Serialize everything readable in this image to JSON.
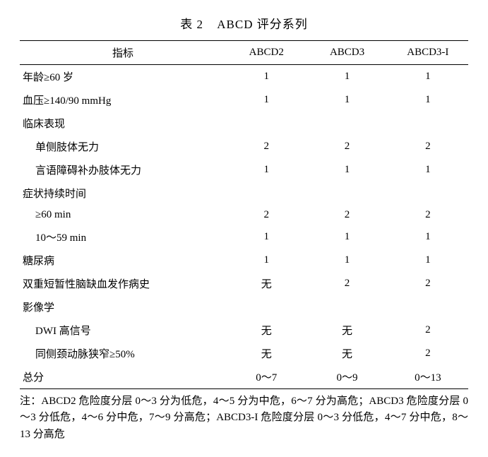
{
  "title_prefix": "表 2",
  "title_text": "ABCD 评分系列",
  "columns": {
    "indicator": "指标",
    "abcd2": "ABCD2",
    "abcd3": "ABCD3",
    "abcd3i": "ABCD3-I"
  },
  "rows": {
    "age": {
      "label": "年龄≥60 岁",
      "a": "1",
      "b": "1",
      "c": "1"
    },
    "bp": {
      "label": "血压≥140/90 mmHg",
      "a": "1",
      "b": "1",
      "c": "1"
    },
    "clin_hdr": {
      "label": "临床表现",
      "a": "",
      "b": "",
      "c": ""
    },
    "uni_weak": {
      "label": "单侧肢体无力",
      "a": "2",
      "b": "2",
      "c": "2"
    },
    "speech": {
      "label": "言语障碍补办肢体无力",
      "a": "1",
      "b": "1",
      "c": "1"
    },
    "dur_hdr": {
      "label": "症状持续时间",
      "a": "",
      "b": "",
      "c": ""
    },
    "dur60": {
      "label": "≥60 min",
      "a": "2",
      "b": "2",
      "c": "2"
    },
    "dur10": {
      "label": "10～59 min",
      "a": "1",
      "b": "1",
      "c": "1"
    },
    "dm": {
      "label": "糖尿病",
      "a": "1",
      "b": "1",
      "c": "1"
    },
    "dual_tia": {
      "label": "双重短暂性脑缺血发作病史",
      "a": "无",
      "b": "2",
      "c": "2"
    },
    "img_hdr": {
      "label": "影像学",
      "a": "",
      "b": "",
      "c": ""
    },
    "dwi": {
      "label": "DWI 高信号",
      "a": "无",
      "b": "无",
      "c": "2"
    },
    "stenosis": {
      "label": "同侧颈动脉狭窄≥50%",
      "a": "无",
      "b": "无",
      "c": "2"
    },
    "total": {
      "label": "总分",
      "a": "0～7",
      "b": "0～9",
      "c": "0～13"
    }
  },
  "footnote": "注：ABCD2 危险度分层 0～3 分为低危，4～5 分为中危，6～7 分为高危；ABCD3 危险度分层 0～3 分低危，4～6 分中危，7～9 分高危；ABCD3-I 危险度分层 0～3 分低危，4～7 分中危，8～13 分高危"
}
